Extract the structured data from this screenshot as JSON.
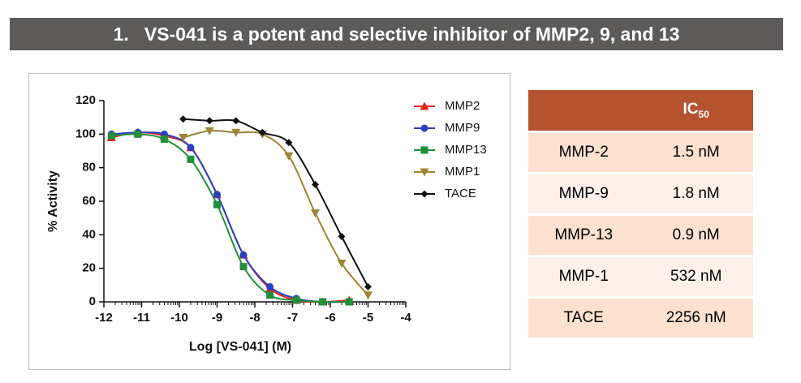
{
  "title": {
    "number": "1.",
    "text": "VS-041 is a potent and selective inhibitor of MMP2, 9, and 13"
  },
  "chart_data": {
    "type": "line",
    "x_label": "Log [VS-041] (M)",
    "y_label": "% Activity",
    "xlim": [
      -12,
      -4
    ],
    "xticks": [
      -12,
      -11,
      -10,
      -9,
      -8,
      -7,
      -6,
      -5,
      -4
    ],
    "ylim": [
      0,
      120
    ],
    "yticks": [
      0,
      20,
      40,
      60,
      80,
      100,
      120
    ],
    "legend": "upper right",
    "series": [
      {
        "name": "MMP2",
        "color": "#e8231f",
        "marker": "triangle",
        "x": [
          -11.8,
          -11.1,
          -10.4,
          -9.7,
          -9.0,
          -8.3,
          -7.6,
          -6.9,
          -6.2,
          -5.5
        ],
        "values": [
          98,
          101,
          99,
          92,
          64,
          28,
          8,
          1,
          0,
          1
        ]
      },
      {
        "name": "MMP9",
        "color": "#2b3fbf",
        "marker": "circle",
        "x": [
          -11.8,
          -11.1,
          -10.4,
          -9.7,
          -9.0,
          -8.3,
          -7.6,
          -6.9,
          -6.2,
          -5.5
        ],
        "values": [
          100,
          101,
          100,
          92,
          64,
          28,
          9,
          2,
          0,
          0
        ]
      },
      {
        "name": "MMP13",
        "color": "#1f8f3a",
        "marker": "square",
        "x": [
          -11.8,
          -11.1,
          -10.4,
          -9.7,
          -9.0,
          -8.3,
          -7.6,
          -6.9,
          -6.2,
          -5.5
        ],
        "values": [
          99,
          100,
          97,
          85,
          58,
          21,
          4,
          1,
          0,
          0
        ]
      },
      {
        "name": "MMP1",
        "color": "#9c8432",
        "marker": "triangle-down",
        "x": [
          -9.9,
          -9.2,
          -8.5,
          -7.8,
          -7.1,
          -6.4,
          -5.7,
          -5.0
        ],
        "values": [
          98,
          102,
          101,
          100,
          87,
          53,
          23,
          4
        ]
      },
      {
        "name": "TACE",
        "color": "#111111",
        "marker": "diamond",
        "x": [
          -9.9,
          -9.2,
          -8.5,
          -7.8,
          -7.1,
          -6.4,
          -5.7,
          -5.0
        ],
        "values": [
          109,
          108,
          108,
          101,
          95,
          70,
          39,
          9
        ]
      }
    ]
  },
  "table": {
    "header_main": "IC",
    "header_sub": "50",
    "rows": [
      [
        "MMP-2",
        "1.5 nM"
      ],
      [
        "MMP-9",
        "1.8 nM"
      ],
      [
        "MMP-13",
        "0.9 nM"
      ],
      [
        "MMP-1",
        "532 nM"
      ],
      [
        "TACE",
        "2256 nM"
      ]
    ]
  }
}
